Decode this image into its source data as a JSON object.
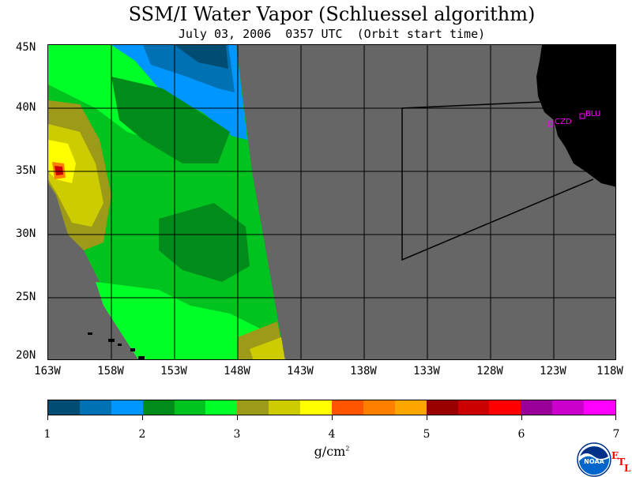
{
  "title": "SSM/I Water Vapor (Schluessel algorithm)",
  "subtitle": "July 03, 2006  0357 UTC  (Orbit start time)",
  "lat_labels": [
    "45N",
    "40N",
    "35N",
    "30N",
    "25N",
    "20N"
  ],
  "lon_labels": [
    "163W",
    "158W",
    "153W",
    "148W",
    "143W",
    "138W",
    "133W",
    "128W",
    "123W",
    "118W"
  ],
  "stations": [
    {
      "code": "CZD"
    },
    {
      "code": "BLU"
    }
  ],
  "colorbar": {
    "colors": [
      "#004c73",
      "#0071b3",
      "#0096ff",
      "#008c1a",
      "#00c320",
      "#00ff28",
      "#9c9a18",
      "#cccc00",
      "#ffff00",
      "#ff5500",
      "#ff8000",
      "#ffa500",
      "#990000",
      "#cc0000",
      "#ff0000",
      "#990099",
      "#cc00cc",
      "#ff00ff"
    ],
    "tick_labels": [
      "1",
      "2",
      "3",
      "4",
      "5",
      "6",
      "7"
    ],
    "unit": "g/cm",
    "unit_sup": "2"
  },
  "colors": {
    "no_data": "#666666",
    "land": "#000000",
    "station": "#ff00ff"
  },
  "logo": {
    "text": "NOAA",
    "etl_letters": [
      "E",
      "T",
      "L"
    ]
  }
}
